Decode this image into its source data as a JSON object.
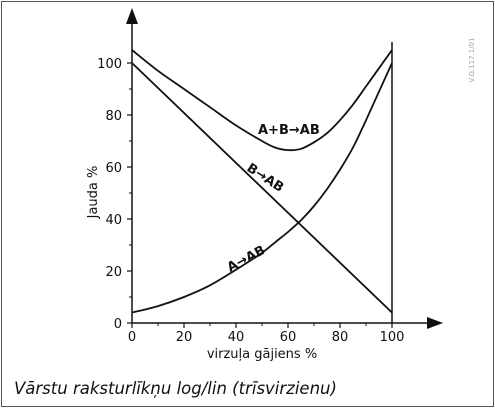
{
  "caption": "Vārstu raksturlīkņu log/lin (trīsvirzienu)",
  "watermark": "V.G.117.1/01",
  "chart_data": {
    "type": "line",
    "xlabel": "virzuļa gājiens %",
    "ylabel": "Jauda %",
    "xlim": [
      0,
      100
    ],
    "ylim": [
      0,
      110
    ],
    "x_ticks": [
      0,
      20,
      40,
      60,
      80,
      100
    ],
    "y_ticks": [
      0,
      20,
      40,
      60,
      80,
      100
    ],
    "grid": false,
    "legend": "none",
    "series": [
      {
        "name": "A+B→AB",
        "x": [
          0,
          10,
          20,
          30,
          40,
          50,
          55,
          60,
          65,
          70,
          75,
          80,
          85,
          90,
          95,
          100
        ],
        "y": [
          105,
          97,
          90,
          83,
          76,
          70,
          67.5,
          66.5,
          67,
          69.5,
          73,
          78,
          84,
          91,
          98,
          105
        ]
      },
      {
        "name": "B→AB",
        "x": [
          0,
          100
        ],
        "y": [
          100,
          4
        ]
      },
      {
        "name": "A→AB",
        "x": [
          0,
          10,
          20,
          30,
          40,
          50,
          55,
          60,
          65,
          70,
          75,
          80,
          85,
          90,
          95,
          100
        ],
        "y": [
          4,
          6.5,
          10,
          14.5,
          20.5,
          27,
          31,
          35,
          39.5,
          45,
          51.5,
          59,
          67.5,
          78,
          89,
          100
        ]
      }
    ],
    "curve_labels": [
      {
        "text": "A+B",
        "arrow": "→",
        "end": "AB"
      },
      {
        "text": "B",
        "arrow": "→",
        "end": "AB"
      },
      {
        "text": "A",
        "arrow": "→",
        "end": "AB"
      }
    ]
  }
}
